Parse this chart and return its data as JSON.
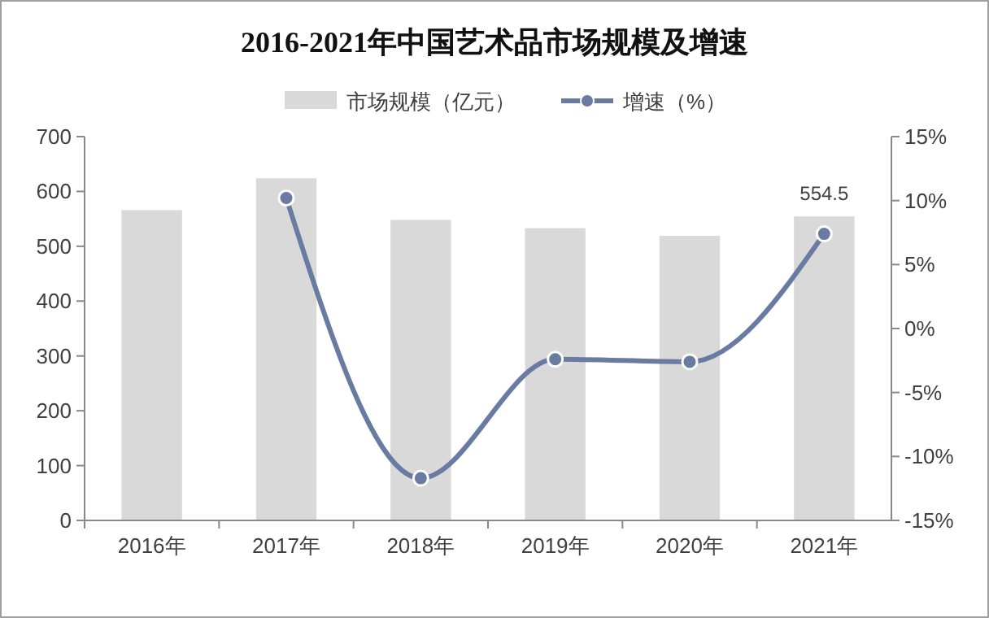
{
  "chart_data": {
    "type": "bar",
    "title": "2016-2021年中国艺术品市场规模及增速",
    "categories": [
      "2016年",
      "2017年",
      "2018年",
      "2019年",
      "2020年",
      "2021年"
    ],
    "series": [
      {
        "name": "市场规模（亿元）",
        "color": "#d9d9d9",
        "values": [
          566,
          624,
          548,
          533,
          519,
          554.5
        ],
        "value_labels": [
          null,
          null,
          null,
          null,
          null,
          "554.5"
        ]
      },
      {
        "name": "增速（%）",
        "type": "line",
        "axis": "y2",
        "color": "#6a7ba2",
        "marker": "circle",
        "values": [
          null,
          10.2,
          -11.7,
          -2.4,
          -2.6,
          7.4
        ]
      }
    ],
    "ylim": [
      0,
      700
    ],
    "yticks": [
      0,
      100,
      200,
      300,
      400,
      500,
      600,
      700
    ],
    "y2lim": [
      -15,
      15
    ],
    "y2ticks": [
      {
        "value": -15,
        "label": "-15%"
      },
      {
        "value": -10,
        "label": "-10%"
      },
      {
        "value": -5,
        "label": "-5%"
      },
      {
        "value": 0,
        "label": "0%"
      },
      {
        "value": 5,
        "label": "5%"
      },
      {
        "value": 10,
        "label": "10%"
      },
      {
        "value": 15,
        "label": "15%"
      }
    ],
    "legend": "top",
    "grid": false
  }
}
